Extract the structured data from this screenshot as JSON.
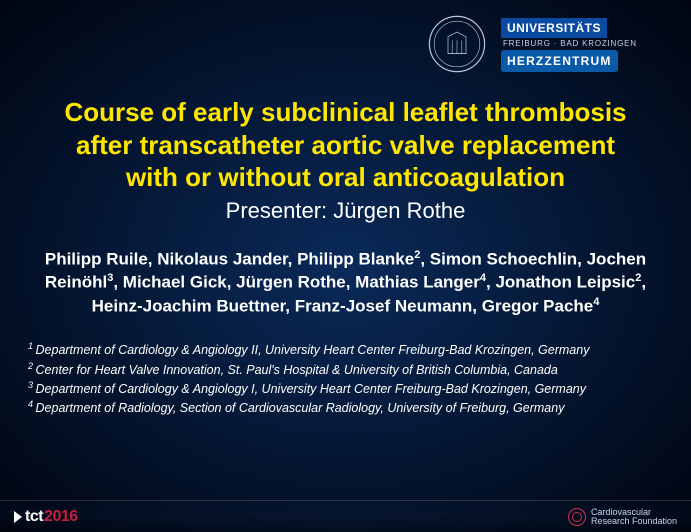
{
  "colors": {
    "title_color": "#ffe600",
    "presenter_color": "#ffffff",
    "authors_color": "#ffffff",
    "affil_color": "#ffffff",
    "bg_gradient_center": "#0a2a5a",
    "bg_gradient_edge": "#000510",
    "tct_year_color": "#c41e3a",
    "badge_bg": "#0a4aa0"
  },
  "logos": {
    "seal_alt": "university-seal",
    "badge_line1": "UNIVERSITÄTS",
    "badge_sub": "FREIBURG · BAD KROZINGEN",
    "badge_line2": "HERZZENTRUM"
  },
  "title": {
    "line1": "Course of early subclinical leaflet thrombosis",
    "line2": "after transcatheter aortic valve replacement",
    "line3": "with or without oral anticoagulation",
    "fontsize": 26,
    "fontweight": "bold"
  },
  "presenter": {
    "label": "Presenter: Jürgen Rothe",
    "fontsize": 22
  },
  "authors": {
    "fontsize": 17,
    "list": [
      {
        "name": "Philipp Ruile",
        "sup": ""
      },
      {
        "name": "Nikolaus Jander",
        "sup": ""
      },
      {
        "name": "Philipp Blanke",
        "sup": "2"
      },
      {
        "name": "Simon Schoechlin",
        "sup": ""
      },
      {
        "name": "Jochen Reinöhl",
        "sup": "3"
      },
      {
        "name": "Michael Gick",
        "sup": ""
      },
      {
        "name": "Jürgen Rothe",
        "sup": ""
      },
      {
        "name": "Mathias Langer",
        "sup": "4"
      },
      {
        "name": "Jonathon Leipsic",
        "sup": "2"
      },
      {
        "name": "Heinz-Joachim Buettner",
        "sup": ""
      },
      {
        "name": "Franz-Josef Neumann",
        "sup": ""
      },
      {
        "name": "Gregor Pache",
        "sup": "4"
      }
    ]
  },
  "affiliations": {
    "fontsize": 12.5,
    "items": [
      {
        "num": "1",
        "text": "Department of Cardiology & Angiology II, University Heart Center Freiburg-Bad Krozingen, Germany"
      },
      {
        "num": "2",
        "text": "Center for Heart Valve Innovation, St. Paul's Hospital & University of British Columbia, Canada"
      },
      {
        "num": "3",
        "text": "Department of Cardiology & Angiology I, University Heart Center Freiburg-Bad Krozingen, Germany"
      },
      {
        "num": "4",
        "text": "Department of Radiology, Section of Cardiovascular Radiology, University of Freiburg, Germany"
      }
    ]
  },
  "footer": {
    "left_prefix": "tct",
    "left_year": "2016",
    "right_line1": "Cardiovascular",
    "right_line2": "Research Foundation"
  }
}
